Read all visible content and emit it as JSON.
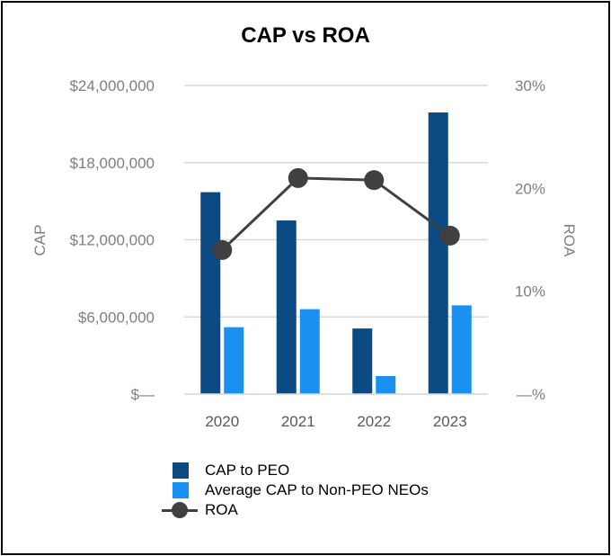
{
  "chart_data": {
    "type": "bar",
    "title": "CAP vs ROA",
    "categories": [
      "2020",
      "2021",
      "2022",
      "2023"
    ],
    "ylabel": "CAP",
    "y2label": "ROA",
    "ylim": [
      0,
      24000000
    ],
    "y2lim": [
      0,
      30
    ],
    "yticks": [
      "$—",
      "$6,000,000",
      "$12,000,000",
      "$18,000,000",
      "$24,000,000"
    ],
    "y2ticks": [
      "—%",
      "10%",
      "20%",
      "30%"
    ],
    "grid": true,
    "legend_position": "bottom",
    "series": [
      {
        "name": "CAP to PEO",
        "type": "bar",
        "axis": "left",
        "color": "#0b4a82",
        "values": [
          15700000,
          13500000,
          5100000,
          21900000
        ]
      },
      {
        "name": "Average CAP to Non-PEO NEOs",
        "type": "bar",
        "axis": "left",
        "color": "#1a91f0",
        "values": [
          5200000,
          6600000,
          1400000,
          6900000
        ]
      },
      {
        "name": "ROA",
        "type": "line",
        "axis": "right",
        "color": "#404040",
        "values": [
          14.0,
          21.0,
          20.8,
          15.4
        ]
      }
    ]
  }
}
